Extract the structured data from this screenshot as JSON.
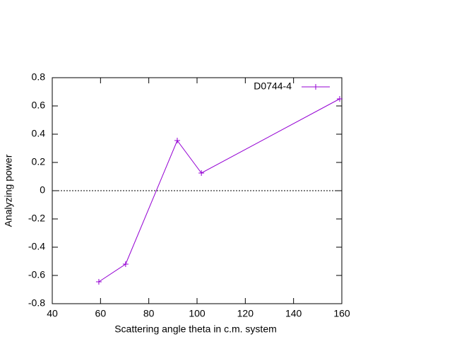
{
  "chart_data": {
    "type": "line",
    "x_label": "Scattering angle theta in c.m. system",
    "y_label": "Analyzing power",
    "x": [
      59.3,
      70.4,
      91.8,
      101.8,
      159.1
    ],
    "series": [
      {
        "name": "D0744-4",
        "color": "#9400d3",
        "values": [
          -0.645,
          -0.52,
          0.355,
          0.125,
          0.65
        ]
      }
    ],
    "xlim": [
      40,
      160
    ],
    "xticks": [
      40,
      60,
      80,
      100,
      120,
      140,
      160
    ],
    "ylim": [
      -0.8,
      0.8
    ],
    "yticks": [
      -0.8,
      -0.6,
      -0.4,
      -0.2,
      0,
      0.2,
      0.4,
      0.6,
      0.8
    ],
    "zero_line": true,
    "legend": "top-right"
  }
}
